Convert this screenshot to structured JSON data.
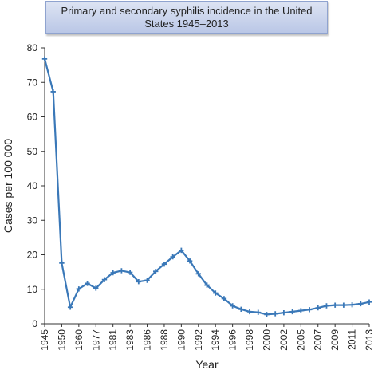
{
  "chart_data": {
    "type": "line",
    "title": "Primary and secondary syphilis incidence in the United States 1945–2013",
    "xlabel": "Year",
    "ylabel": "Cases per 100 000",
    "ylim": [
      0,
      80
    ],
    "yticks": [
      0,
      10,
      20,
      30,
      40,
      50,
      60,
      70,
      80
    ],
    "grid": false,
    "legend": "none",
    "line_color": "#3a78b8",
    "x_tick_labels": [
      "1945",
      "1950",
      "1960",
      "1977",
      "1981",
      "1983",
      "1986",
      "1988",
      "1990",
      "1992",
      "1994",
      "1996",
      "1998",
      "2000",
      "2002",
      "2005",
      "2007",
      "2009",
      "2011",
      "2013"
    ],
    "series": [
      {
        "values": [
          76.8,
          67.3,
          17.6,
          4.8,
          10.1,
          11.7,
          10.3,
          12.8,
          14.8,
          15.4,
          14.9,
          12.2,
          12.6,
          15.2,
          17.3,
          19.4,
          21.3,
          18.2,
          14.5,
          11.2,
          8.9,
          7.3,
          5.2,
          4.2,
          3.5,
          3.3,
          2.7,
          2.9,
          3.2,
          3.5,
          3.8,
          4.1,
          4.6,
          5.2,
          5.4,
          5.4,
          5.5,
          5.8,
          6.3
        ]
      }
    ]
  }
}
